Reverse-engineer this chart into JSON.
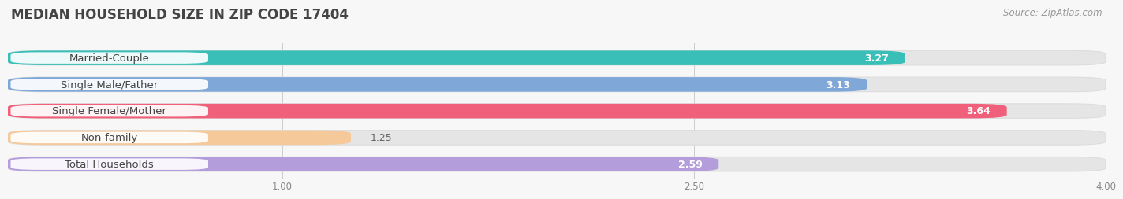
{
  "title": "MEDIAN HOUSEHOLD SIZE IN ZIP CODE 17404",
  "source": "Source: ZipAtlas.com",
  "categories": [
    "Married-Couple",
    "Single Male/Father",
    "Single Female/Mother",
    "Non-family",
    "Total Households"
  ],
  "values": [
    3.27,
    3.13,
    3.64,
    1.25,
    2.59
  ],
  "bar_colors": [
    "#3abfb8",
    "#7fa8d8",
    "#f0607a",
    "#f5c99a",
    "#b39ddb"
  ],
  "xmin": 0.0,
  "xmax": 4.0,
  "xticks": [
    1.0,
    2.5,
    4.0
  ],
  "xtick_labels": [
    "1.00",
    "2.50",
    "4.00"
  ],
  "background_color": "#f7f7f7",
  "bar_bg_color": "#e5e5e5",
  "title_fontsize": 12,
  "label_fontsize": 9.5,
  "value_fontsize": 9,
  "source_fontsize": 8.5
}
